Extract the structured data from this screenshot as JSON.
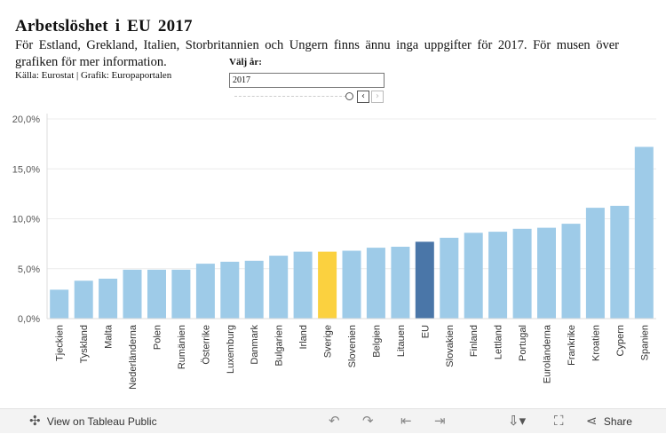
{
  "header": {
    "title": "Arbetslöshet i EU 2017",
    "description": "För Estland, Grekland, Italien, Storbritannien och Ungern finns ännu inga uppgifter för 2017. För musen över grafiken för mer information.",
    "source": "Källa: Eurostat | Grafik: Europaportalen"
  },
  "filter": {
    "label": "Välj år:",
    "value": "2017",
    "prev_icon": "chevron-left-icon",
    "next_icon": "chevron-right-icon"
  },
  "colors": {
    "default": "#9ecbe8",
    "sverige": "#fbd13f",
    "eu": "#4a76a8",
    "grid": "#ececec",
    "axis_text": "#555555"
  },
  "chart_data": {
    "type": "bar",
    "title": "Arbetslöshet i EU 2017",
    "xlabel": "",
    "ylabel": "",
    "ylim": [
      0,
      20
    ],
    "yticks": [
      "0,0%",
      "5,0%",
      "10,0%",
      "15,0%",
      "20,0%"
    ],
    "ytick_values": [
      0,
      5,
      10,
      15,
      20
    ],
    "grid": true,
    "categories": [
      "Tjeckien",
      "Tyskland",
      "Malta",
      "Nederländerna",
      "Polen",
      "Rumänien",
      "Österrike",
      "Luxemburg",
      "Danmark",
      "Bulgarien",
      "Irland",
      "Sverige",
      "Slovenien",
      "Belgien",
      "Litauen",
      "EU",
      "Slovakien",
      "Finland",
      "Lettland",
      "Portugal",
      "Euroländerna",
      "Frankrike",
      "Kroatien",
      "Cypern",
      "Spanien"
    ],
    "values": [
      2.9,
      3.8,
      4.0,
      4.9,
      4.9,
      4.9,
      5.5,
      5.7,
      5.8,
      6.3,
      6.7,
      6.7,
      6.8,
      7.1,
      7.2,
      7.7,
      8.1,
      8.6,
      8.7,
      9.0,
      9.1,
      9.5,
      11.1,
      11.3,
      17.2
    ],
    "highlight": {
      "Sverige": "sverige",
      "EU": "eu"
    }
  },
  "footer": {
    "view_label": "View on Tableau Public",
    "share_label": "Share",
    "view_icon": "tableau-logo-icon",
    "undo_icon": "undo-icon",
    "redo_icon": "redo-icon",
    "revert_icon": "revert-icon",
    "forward_icon": "forward-icon",
    "download_icon": "download-icon",
    "fullscreen_icon": "fullscreen-icon",
    "share_icon": "share-icon"
  }
}
